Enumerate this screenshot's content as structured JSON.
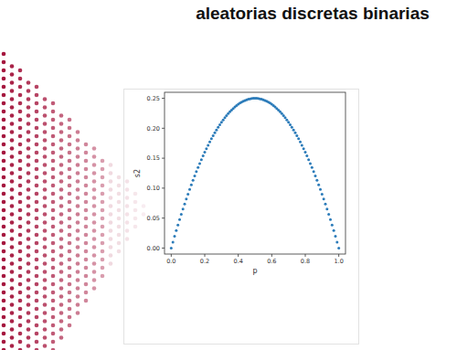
{
  "chart_data": {
    "type": "scatter",
    "title": "aleatorias discretas binarias",
    "x_label": "p",
    "y_label": "s2",
    "color": "#2b7bb9",
    "marker": "circle",
    "xlim": [
      -0.04,
      1.04
    ],
    "ylim": [
      -0.01,
      0.26
    ],
    "xticks": [
      {
        "value": 0,
        "label": "0.0"
      },
      0.2,
      0.4,
      0.6,
      0.8,
      {
        "value": 1,
        "label": "1.0"
      }
    ],
    "yticks": [
      {
        "value": 0,
        "label": "0.00"
      },
      0.05,
      {
        "value": 0.1,
        "label": "0.10"
      },
      0.15,
      {
        "value": 0.2,
        "label": "0.20"
      },
      0.25
    ],
    "x": [
      0,
      0.01,
      0.02,
      0.03,
      0.04,
      0.05,
      0.06,
      0.07,
      0.08,
      0.09,
      0.1,
      0.11,
      0.12,
      0.13,
      0.14,
      0.15,
      0.16,
      0.17,
      0.18,
      0.19,
      0.2,
      0.21,
      0.22,
      0.23,
      0.24,
      0.25,
      0.26,
      0.27,
      0.28,
      0.29,
      0.3,
      0.31,
      0.32,
      0.33,
      0.34,
      0.35,
      0.36,
      0.37,
      0.38,
      0.39,
      0.4,
      0.41,
      0.42,
      0.43,
      0.44,
      0.45,
      0.46,
      0.47,
      0.48,
      0.49,
      0.5,
      0.51,
      0.52,
      0.53,
      0.54,
      0.55,
      0.56,
      0.57,
      0.58,
      0.59,
      0.6,
      0.61,
      0.62,
      0.63,
      0.64,
      0.65,
      0.66,
      0.67,
      0.68,
      0.69,
      0.7,
      0.71,
      0.72,
      0.73,
      0.74,
      0.75,
      0.76,
      0.77,
      0.78,
      0.79,
      0.8,
      0.81,
      0.82,
      0.83,
      0.84,
      0.85,
      0.86,
      0.87,
      0.88,
      0.89,
      0.9,
      0.91,
      0.92,
      0.93,
      0.94,
      0.95,
      0.96,
      0.97,
      0.98,
      0.99,
      1
    ],
    "values": [
      0,
      0.0099,
      0.0196,
      0.0291,
      0.0384,
      0.0475,
      0.0564,
      0.0651,
      0.0736,
      0.0819,
      0.09,
      0.0979,
      0.1056,
      0.1131,
      0.1204,
      0.1275,
      0.1344,
      0.1411,
      0.1476,
      0.1539,
      0.16,
      0.1659,
      0.1716,
      0.1771,
      0.1824,
      0.1875,
      0.1924,
      0.1971,
      0.2016,
      0.2059,
      0.21,
      0.2139,
      0.2176,
      0.2211,
      0.2244,
      0.2275,
      0.2304,
      0.2331,
      0.2356,
      0.2379,
      0.24,
      0.2419,
      0.2436,
      0.2451,
      0.2464,
      0.2475,
      0.2484,
      0.2491,
      0.2496,
      0.2499,
      0.25,
      0.2499,
      0.2496,
      0.2491,
      0.2484,
      0.2475,
      0.2464,
      0.2451,
      0.2436,
      0.2419,
      0.24,
      0.2379,
      0.2356,
      0.2331,
      0.2304,
      0.2275,
      0.2244,
      0.2211,
      0.2176,
      0.2139,
      0.21,
      0.2059,
      0.2016,
      0.1971,
      0.1924,
      0.1875,
      0.1824,
      0.1771,
      0.1716,
      0.1659,
      0.16,
      0.1539,
      0.1476,
      0.1411,
      0.1344,
      0.1275,
      0.1204,
      0.1131,
      0.1056,
      0.0979,
      0.09,
      0.0819,
      0.0736,
      0.0651,
      0.0564,
      0.0475,
      0.0384,
      0.0291,
      0.0196,
      0.0099,
      0
    ]
  }
}
